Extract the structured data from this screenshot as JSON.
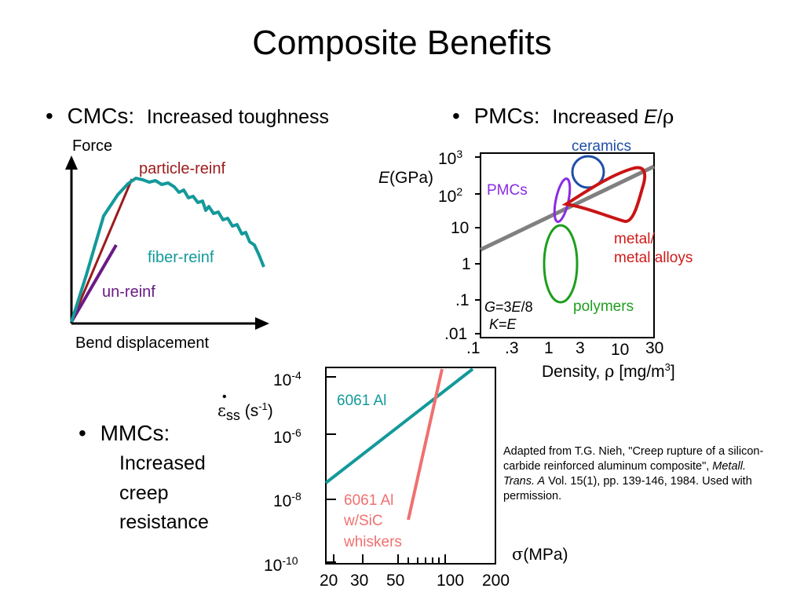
{
  "slide": {
    "title": "Composite Benefits",
    "bullet_char": "•",
    "cmc": {
      "head": "CMCs:",
      "text": "Increased toughness",
      "y_axis": "Force",
      "x_axis": "Bend displacement",
      "curves": {
        "particle": "particle-reinf",
        "fiber": "fiber-reinf",
        "unreinf": "un-reinf"
      },
      "colors": {
        "particle": "#9c1b1b",
        "fiber": "#14999a",
        "unreinf": "#6a1a86"
      }
    },
    "pmc": {
      "head": "PMCs:",
      "text_prefix": "Increased ",
      "text_e": "E",
      "text_slash": "/",
      "text_rho": "ρ",
      "y_axis_e": "E",
      "y_axis_rest": "(GPa)",
      "y_ticks": [
        {
          "base": "10",
          "exp": "3"
        },
        {
          "base": "10",
          "exp": "2"
        },
        {
          "base": "10",
          "exp": ""
        },
        {
          "base": "1",
          "exp": ""
        },
        {
          "base": ".1",
          "exp": ""
        },
        {
          "base": ".01",
          "exp": ""
        }
      ],
      "x_ticks": [
        ".1",
        ".3",
        "1",
        "3",
        "10",
        "30"
      ],
      "x_axis_prefix": "Density, ",
      "x_axis_rho": "ρ",
      "x_axis_unit": " [mg/m",
      "x_axis_exp": "3",
      "x_axis_close": "]",
      "regions": {
        "ceramics": "ceramics",
        "pmcs": "PMCs",
        "metal1": "metal/",
        "metal2": "metal alloys",
        "polymers": "polymers"
      },
      "relation_g": {
        "g": "G",
        "eq": "=3",
        "e": "E",
        "rest": "/8"
      },
      "relation_k": {
        "k": "K",
        "eq": "=",
        "e": "E"
      },
      "colors": {
        "ceramics": "#1f4fa8",
        "pmcs": "#8a2be2",
        "metal": "#d11a1a",
        "polymers": "#1e9e1e",
        "line": "#808080"
      }
    },
    "mmc": {
      "head": "MMCs:",
      "lines": [
        "Increased",
        "creep",
        "resistance"
      ],
      "y_ticks": [
        {
          "base": "10",
          "exp": "-4"
        },
        {
          "base": "10",
          "exp": "-6"
        },
        {
          "base": "10",
          "exp": "-8"
        },
        {
          "base": "10",
          "exp": "-10"
        }
      ],
      "x_ticks": [
        "20",
        "30",
        "50",
        "100",
        "200"
      ],
      "y_axis_eps": "ε",
      "y_axis_dot": "•",
      "y_axis_sub": "ss",
      "y_axis_unit_open": " (s",
      "y_axis_unit_exp": "-1",
      "y_axis_unit_close": ")",
      "x_axis_sigma": "σ",
      "x_axis_rest": "(MPa)",
      "series": {
        "plain": "6061 Al",
        "sic1": "6061 Al",
        "sic2": "w/SiC",
        "sic3": "whiskers"
      },
      "colors": {
        "plain": "#14999a",
        "sic": "#f07070"
      }
    },
    "credit": {
      "prefix": "Adapted from T.G. Nieh, \"Creep rupture of a silicon-carbide reinforced aluminum composite\", ",
      "journal": "Metall. Trans. A",
      "suffix": " Vol. 15(1), pp. 139-146, 1984.  Used with permission."
    }
  }
}
